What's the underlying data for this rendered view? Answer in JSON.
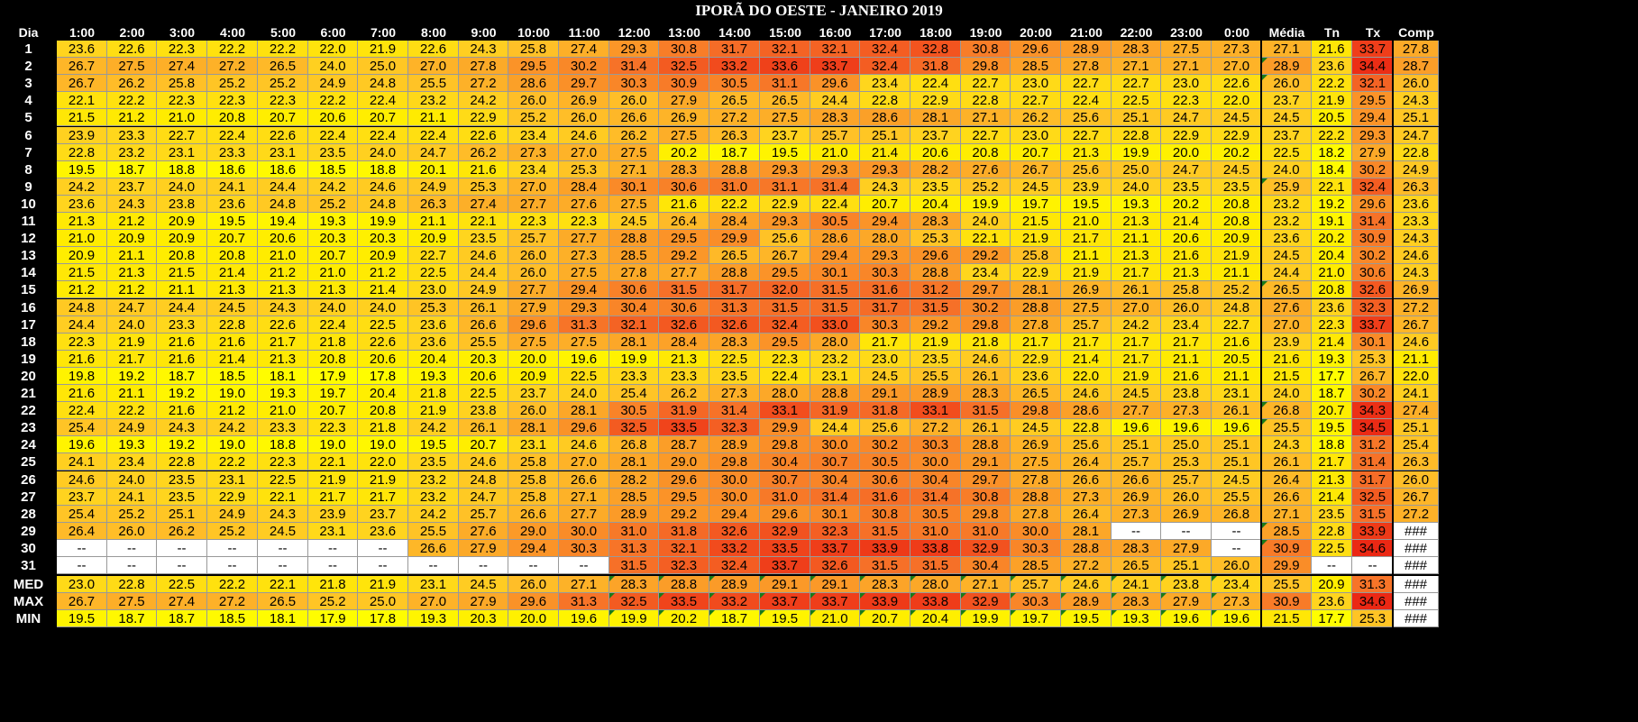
{
  "title": "IPORÃ DO OESTE - JANEIRO 2019",
  "headers": [
    "Dia",
    "1:00",
    "2:00",
    "3:00",
    "4:00",
    "5:00",
    "6:00",
    "7:00",
    "8:00",
    "9:00",
    "10:00",
    "11:00",
    "12:00",
    "13:00",
    "14:00",
    "15:00",
    "16:00",
    "17:00",
    "18:00",
    "19:00",
    "20:00",
    "21:00",
    "22:00",
    "23:00",
    "0:00",
    "Média",
    "Tn",
    "Tx",
    "Comp"
  ],
  "rows": [
    {
      "label": "1",
      "values": [
        "23.6",
        "22.6",
        "22.3",
        "22.2",
        "22.2",
        "22.0",
        "21.9",
        "22.6",
        "24.3",
        "25.8",
        "27.4",
        "29.3",
        "30.8",
        "31.7",
        "32.1",
        "32.1",
        "32.4",
        "32.8",
        "30.8",
        "29.6",
        "28.9",
        "28.3",
        "27.5",
        "27.3",
        "27.1",
        "21.6",
        "33.7",
        "27.8"
      ]
    },
    {
      "label": "2",
      "values": [
        "26.7",
        "27.5",
        "27.4",
        "27.2",
        "26.5",
        "24.0",
        "25.0",
        "27.0",
        "27.8",
        "29.5",
        "30.2",
        "31.4",
        "32.5",
        "33.2",
        "33.6",
        "33.7",
        "32.4",
        "31.8",
        "29.8",
        "28.5",
        "27.8",
        "27.1",
        "27.1",
        "27.0",
        "28.9",
        "23.6",
        "34.4",
        "28.7"
      ]
    },
    {
      "label": "3",
      "values": [
        "26.7",
        "26.2",
        "25.8",
        "25.2",
        "25.2",
        "24.9",
        "24.8",
        "25.5",
        "27.2",
        "28.6",
        "29.7",
        "30.3",
        "30.9",
        "30.5",
        "31.1",
        "29.6",
        "23.4",
        "22.4",
        "22.7",
        "23.0",
        "22.7",
        "22.7",
        "23.0",
        "22.6",
        "26.0",
        "22.2",
        "32.1",
        "26.0"
      ]
    },
    {
      "label": "4",
      "values": [
        "22.1",
        "22.2",
        "22.3",
        "22.3",
        "22.3",
        "22.2",
        "22.4",
        "23.2",
        "24.2",
        "26.0",
        "26.9",
        "26.0",
        "27.9",
        "26.5",
        "26.5",
        "24.4",
        "22.8",
        "22.9",
        "22.8",
        "22.7",
        "22.4",
        "22.5",
        "22.3",
        "22.0",
        "23.7",
        "21.9",
        "29.5",
        "24.3"
      ]
    },
    {
      "label": "5",
      "values": [
        "21.5",
        "21.2",
        "21.0",
        "20.8",
        "20.7",
        "20.6",
        "20.7",
        "21.1",
        "22.9",
        "25.2",
        "26.0",
        "26.6",
        "26.9",
        "27.2",
        "27.5",
        "28.3",
        "28.6",
        "28.1",
        "27.1",
        "26.2",
        "25.6",
        "25.1",
        "24.7",
        "24.5",
        "24.5",
        "20.5",
        "29.4",
        "25.1"
      ]
    },
    {
      "label": "6",
      "values": [
        "23.9",
        "23.3",
        "22.7",
        "22.4",
        "22.6",
        "22.4",
        "22.4",
        "22.4",
        "22.6",
        "23.4",
        "24.6",
        "26.2",
        "27.5",
        "26.3",
        "23.7",
        "25.7",
        "25.1",
        "23.7",
        "22.7",
        "23.0",
        "22.7",
        "22.8",
        "22.9",
        "22.9",
        "23.7",
        "22.2",
        "29.3",
        "24.7"
      ]
    },
    {
      "label": "7",
      "values": [
        "22.8",
        "23.2",
        "23.1",
        "23.3",
        "23.1",
        "23.5",
        "24.0",
        "24.7",
        "26.2",
        "27.3",
        "27.0",
        "27.5",
        "20.2",
        "18.7",
        "19.5",
        "21.0",
        "21.4",
        "20.6",
        "20.8",
        "20.7",
        "21.3",
        "19.9",
        "20.0",
        "20.2",
        "22.5",
        "18.2",
        "27.9",
        "22.8"
      ]
    },
    {
      "label": "8",
      "values": [
        "19.5",
        "18.7",
        "18.8",
        "18.6",
        "18.6",
        "18.5",
        "18.8",
        "20.1",
        "21.6",
        "23.4",
        "25.3",
        "27.1",
        "28.3",
        "28.8",
        "29.3",
        "29.3",
        "29.3",
        "28.2",
        "27.6",
        "26.7",
        "25.6",
        "25.0",
        "24.7",
        "24.5",
        "24.0",
        "18.4",
        "30.2",
        "24.9"
      ]
    },
    {
      "label": "9",
      "values": [
        "24.2",
        "23.7",
        "24.0",
        "24.1",
        "24.4",
        "24.2",
        "24.6",
        "24.9",
        "25.3",
        "27.0",
        "28.4",
        "30.1",
        "30.6",
        "31.0",
        "31.1",
        "31.4",
        "24.3",
        "23.5",
        "25.2",
        "24.5",
        "23.9",
        "24.0",
        "23.5",
        "23.5",
        "25.9",
        "22.1",
        "32.4",
        "26.3"
      ]
    },
    {
      "label": "10",
      "values": [
        "23.6",
        "24.3",
        "23.8",
        "23.6",
        "24.8",
        "25.2",
        "24.8",
        "26.3",
        "27.4",
        "27.7",
        "27.6",
        "27.5",
        "21.6",
        "22.2",
        "22.9",
        "22.4",
        "20.7",
        "20.4",
        "19.9",
        "19.7",
        "19.5",
        "19.3",
        "20.2",
        "20.8",
        "23.2",
        "19.2",
        "29.6",
        "23.6"
      ]
    },
    {
      "label": "11",
      "values": [
        "21.3",
        "21.2",
        "20.9",
        "19.5",
        "19.4",
        "19.3",
        "19.9",
        "21.1",
        "22.1",
        "22.3",
        "22.3",
        "24.5",
        "26.4",
        "28.4",
        "29.3",
        "30.5",
        "29.4",
        "28.3",
        "24.0",
        "21.5",
        "21.0",
        "21.3",
        "21.4",
        "20.8",
        "23.2",
        "19.1",
        "31.4",
        "23.3"
      ]
    },
    {
      "label": "12",
      "values": [
        "21.0",
        "20.9",
        "20.9",
        "20.7",
        "20.6",
        "20.3",
        "20.3",
        "20.9",
        "23.5",
        "25.7",
        "27.7",
        "28.8",
        "29.5",
        "29.9",
        "25.6",
        "28.6",
        "28.0",
        "25.3",
        "22.1",
        "21.9",
        "21.7",
        "21.1",
        "20.6",
        "20.9",
        "23.6",
        "20.2",
        "30.9",
        "24.3"
      ]
    },
    {
      "label": "13",
      "values": [
        "20.9",
        "21.1",
        "20.8",
        "20.8",
        "21.0",
        "20.7",
        "20.9",
        "22.7",
        "24.6",
        "26.0",
        "27.3",
        "28.5",
        "29.2",
        "26.5",
        "26.7",
        "29.4",
        "29.3",
        "29.6",
        "29.2",
        "25.8",
        "21.1",
        "21.3",
        "21.6",
        "21.9",
        "24.5",
        "20.4",
        "30.2",
        "24.6"
      ]
    },
    {
      "label": "14",
      "values": [
        "21.5",
        "21.3",
        "21.5",
        "21.4",
        "21.2",
        "21.0",
        "21.2",
        "22.5",
        "24.4",
        "26.0",
        "27.5",
        "27.8",
        "27.7",
        "28.8",
        "29.5",
        "30.1",
        "30.3",
        "28.8",
        "23.4",
        "22.9",
        "21.9",
        "21.7",
        "21.3",
        "21.1",
        "24.4",
        "21.0",
        "30.6",
        "24.3"
      ]
    },
    {
      "label": "15",
      "values": [
        "21.2",
        "21.2",
        "21.1",
        "21.3",
        "21.3",
        "21.3",
        "21.4",
        "23.0",
        "24.9",
        "27.7",
        "29.4",
        "30.6",
        "31.5",
        "31.7",
        "32.0",
        "31.5",
        "31.6",
        "31.2",
        "29.7",
        "28.1",
        "26.9",
        "26.1",
        "25.8",
        "25.2",
        "26.5",
        "20.8",
        "32.6",
        "26.9"
      ]
    },
    {
      "label": "16",
      "values": [
        "24.8",
        "24.7",
        "24.4",
        "24.5",
        "24.3",
        "24.0",
        "24.0",
        "25.3",
        "26.1",
        "27.9",
        "29.3",
        "30.4",
        "30.6",
        "31.3",
        "31.5",
        "31.5",
        "31.7",
        "31.5",
        "30.2",
        "28.8",
        "27.5",
        "27.0",
        "26.0",
        "24.8",
        "27.6",
        "23.6",
        "32.3",
        "27.2"
      ]
    },
    {
      "label": "17",
      "values": [
        "24.4",
        "24.0",
        "23.3",
        "22.8",
        "22.6",
        "22.4",
        "22.5",
        "23.6",
        "26.6",
        "29.6",
        "31.3",
        "32.1",
        "32.6",
        "32.6",
        "32.4",
        "33.0",
        "30.3",
        "29.2",
        "29.8",
        "27.8",
        "25.7",
        "24.2",
        "23.4",
        "22.7",
        "27.0",
        "22.3",
        "33.7",
        "26.7"
      ]
    },
    {
      "label": "18",
      "values": [
        "22.3",
        "21.9",
        "21.6",
        "21.6",
        "21.7",
        "21.8",
        "22.6",
        "23.6",
        "25.5",
        "27.5",
        "27.5",
        "28.1",
        "28.4",
        "28.3",
        "29.5",
        "28.0",
        "21.7",
        "21.9",
        "21.8",
        "21.7",
        "21.7",
        "21.7",
        "21.7",
        "21.6",
        "23.9",
        "21.4",
        "30.1",
        "24.6"
      ]
    },
    {
      "label": "19",
      "values": [
        "21.6",
        "21.7",
        "21.6",
        "21.4",
        "21.3",
        "20.8",
        "20.6",
        "20.4",
        "20.3",
        "20.0",
        "19.6",
        "19.9",
        "21.3",
        "22.5",
        "22.3",
        "23.2",
        "23.0",
        "23.5",
        "24.6",
        "22.9",
        "21.4",
        "21.7",
        "21.1",
        "20.5",
        "21.6",
        "19.3",
        "25.3",
        "21.1"
      ]
    },
    {
      "label": "20",
      "values": [
        "19.8",
        "19.2",
        "18.7",
        "18.5",
        "18.1",
        "17.9",
        "17.8",
        "19.3",
        "20.6",
        "20.9",
        "22.5",
        "23.3",
        "23.3",
        "23.5",
        "22.4",
        "23.1",
        "24.5",
        "25.5",
        "26.1",
        "23.6",
        "22.0",
        "21.9",
        "21.6",
        "21.1",
        "21.5",
        "17.7",
        "26.7",
        "22.0"
      ]
    },
    {
      "label": "21",
      "values": [
        "21.6",
        "21.1",
        "19.2",
        "19.0",
        "19.3",
        "19.7",
        "20.4",
        "21.8",
        "22.5",
        "23.7",
        "24.0",
        "25.4",
        "26.2",
        "27.3",
        "28.0",
        "28.8",
        "29.1",
        "28.9",
        "28.3",
        "26.5",
        "24.6",
        "24.5",
        "23.8",
        "23.1",
        "24.0",
        "18.7",
        "30.2",
        "24.1"
      ]
    },
    {
      "label": "22",
      "values": [
        "22.4",
        "22.2",
        "21.6",
        "21.2",
        "21.0",
        "20.7",
        "20.8",
        "21.9",
        "23.8",
        "26.0",
        "28.1",
        "30.5",
        "31.9",
        "31.4",
        "33.1",
        "31.9",
        "31.8",
        "33.1",
        "31.5",
        "29.8",
        "28.6",
        "27.7",
        "27.3",
        "26.1",
        "26.8",
        "20.7",
        "34.3",
        "27.4"
      ]
    },
    {
      "label": "23",
      "values": [
        "25.4",
        "24.9",
        "24.3",
        "24.2",
        "23.3",
        "22.3",
        "21.8",
        "24.2",
        "26.1",
        "28.1",
        "29.6",
        "32.5",
        "33.5",
        "32.3",
        "29.9",
        "24.4",
        "25.6",
        "27.2",
        "26.1",
        "24.5",
        "22.8",
        "19.6",
        "19.6",
        "19.6",
        "25.5",
        "19.5",
        "34.5",
        "25.1"
      ]
    },
    {
      "label": "24",
      "values": [
        "19.6",
        "19.3",
        "19.2",
        "19.0",
        "18.8",
        "19.0",
        "19.0",
        "19.5",
        "20.7",
        "23.1",
        "24.6",
        "26.8",
        "28.7",
        "28.9",
        "29.8",
        "30.0",
        "30.2",
        "30.3",
        "28.8",
        "26.9",
        "25.6",
        "25.1",
        "25.0",
        "25.1",
        "24.3",
        "18.8",
        "31.2",
        "25.4"
      ]
    },
    {
      "label": "25",
      "values": [
        "24.1",
        "23.4",
        "22.8",
        "22.2",
        "22.3",
        "22.1",
        "22.0",
        "23.5",
        "24.6",
        "25.8",
        "27.0",
        "28.1",
        "29.0",
        "29.8",
        "30.4",
        "30.7",
        "30.5",
        "30.0",
        "29.1",
        "27.5",
        "26.4",
        "25.7",
        "25.3",
        "25.1",
        "26.1",
        "21.7",
        "31.4",
        "26.3"
      ]
    },
    {
      "label": "26",
      "values": [
        "24.6",
        "24.0",
        "23.5",
        "23.1",
        "22.5",
        "21.9",
        "21.9",
        "23.2",
        "24.8",
        "25.8",
        "26.6",
        "28.2",
        "29.6",
        "30.0",
        "30.7",
        "30.4",
        "30.6",
        "30.4",
        "29.7",
        "27.8",
        "26.6",
        "26.6",
        "25.7",
        "24.5",
        "26.4",
        "21.3",
        "31.7",
        "26.0"
      ]
    },
    {
      "label": "27",
      "values": [
        "23.7",
        "24.1",
        "23.5",
        "22.9",
        "22.1",
        "21.7",
        "21.7",
        "23.2",
        "24.7",
        "25.8",
        "27.1",
        "28.5",
        "29.5",
        "30.0",
        "31.0",
        "31.4",
        "31.6",
        "31.4",
        "30.8",
        "28.8",
        "27.3",
        "26.9",
        "26.0",
        "25.5",
        "26.6",
        "21.4",
        "32.5",
        "26.7"
      ]
    },
    {
      "label": "28",
      "values": [
        "25.4",
        "25.2",
        "25.1",
        "24.9",
        "24.3",
        "23.9",
        "23.7",
        "24.2",
        "25.7",
        "26.6",
        "27.7",
        "28.9",
        "29.2",
        "29.4",
        "29.6",
        "30.1",
        "30.8",
        "30.5",
        "29.8",
        "27.8",
        "26.4",
        "27.3",
        "26.9",
        "26.8",
        "27.1",
        "23.5",
        "31.5",
        "27.2"
      ]
    },
    {
      "label": "29",
      "values": [
        "26.4",
        "26.0",
        "26.2",
        "25.2",
        "24.5",
        "23.1",
        "23.6",
        "25.5",
        "27.6",
        "29.0",
        "30.0",
        "31.0",
        "31.8",
        "32.6",
        "32.9",
        "32.3",
        "31.5",
        "31.0",
        "31.0",
        "30.0",
        "28.1",
        "--",
        "--",
        "--",
        "28.5",
        "22.8",
        "33.9",
        "###"
      ]
    },
    {
      "label": "30",
      "values": [
        "--",
        "--",
        "--",
        "--",
        "--",
        "--",
        "--",
        "26.6",
        "27.9",
        "29.4",
        "30.3",
        "31.3",
        "32.1",
        "33.2",
        "33.5",
        "33.7",
        "33.9",
        "33.8",
        "32.9",
        "30.3",
        "28.8",
        "28.3",
        "27.9",
        "--",
        "30.9",
        "22.5",
        "34.6",
        "###"
      ]
    },
    {
      "label": "31",
      "values": [
        "--",
        "--",
        "--",
        "--",
        "--",
        "--",
        "--",
        "--",
        "--",
        "--",
        "--",
        "31.5",
        "32.3",
        "32.4",
        "33.7",
        "32.6",
        "31.5",
        "31.5",
        "30.4",
        "28.5",
        "27.2",
        "26.5",
        "25.1",
        "26.0",
        "29.9",
        "--",
        "--",
        "###"
      ]
    },
    {
      "label": "MED",
      "values": [
        "23.0",
        "22.8",
        "22.5",
        "22.2",
        "22.1",
        "21.8",
        "21.9",
        "23.1",
        "24.5",
        "26.0",
        "27.1",
        "28.3",
        "28.8",
        "28.9",
        "29.1",
        "29.1",
        "28.3",
        "28.0",
        "27.1",
        "25.7",
        "24.6",
        "24.1",
        "23.8",
        "23.4",
        "25.5",
        "20.9",
        "31.3",
        "###"
      ]
    },
    {
      "label": "MAX",
      "values": [
        "26.7",
        "27.5",
        "27.4",
        "27.2",
        "26.5",
        "25.2",
        "25.0",
        "27.0",
        "27.9",
        "29.6",
        "31.3",
        "32.5",
        "33.5",
        "33.2",
        "33.7",
        "33.7",
        "33.9",
        "33.8",
        "32.9",
        "30.3",
        "28.9",
        "28.3",
        "27.9",
        "27.3",
        "30.9",
        "23.6",
        "34.6",
        "###"
      ]
    },
    {
      "label": "MIN",
      "values": [
        "19.5",
        "18.7",
        "18.7",
        "18.5",
        "18.1",
        "17.9",
        "17.8",
        "19.3",
        "20.3",
        "20.0",
        "19.6",
        "19.9",
        "20.2",
        "18.7",
        "19.5",
        "21.0",
        "20.7",
        "20.4",
        "19.9",
        "19.7",
        "19.5",
        "19.3",
        "19.6",
        "19.6",
        "21.5",
        "17.7",
        "25.3",
        "###"
      ]
    }
  ]
}
